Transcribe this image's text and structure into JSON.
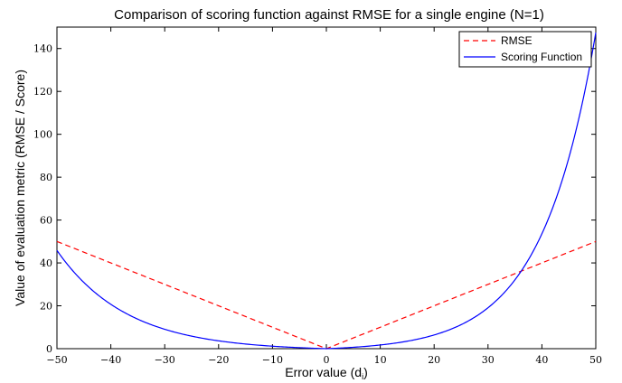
{
  "chart_data": {
    "type": "line",
    "title": "Comparison of scoring function against RMSE for a single engine (N=1)",
    "xlabel": "Error value (d",
    "xlabel_subscript": "i",
    "xlabel_suffix": ")",
    "ylabel": "Value of evaluation metric (RMSE / Score)",
    "xlim": [
      -50,
      50
    ],
    "ylim": [
      0,
      150
    ],
    "xticks": [
      -50,
      -40,
      -30,
      -20,
      -10,
      0,
      10,
      20,
      30,
      40,
      50
    ],
    "xtick_labels": [
      "−50",
      "−40",
      "−30",
      "−20",
      "−10",
      "0",
      "10",
      "20",
      "30",
      "40",
      "50"
    ],
    "yticks": [
      0,
      20,
      40,
      60,
      80,
      100,
      120,
      140
    ],
    "ytick_labels": [
      "0",
      "20",
      "40",
      "60",
      "80",
      "100",
      "120",
      "140"
    ],
    "grid": false,
    "legend_position": "top-right",
    "series": [
      {
        "name": "RMSE",
        "color": "#ff0000",
        "style": "dashed",
        "x": [
          -50,
          -40,
          -30,
          -20,
          -10,
          0,
          10,
          20,
          30,
          40,
          50
        ],
        "y": [
          50,
          40,
          30,
          20,
          10,
          0,
          10,
          20,
          30,
          40,
          50
        ]
      },
      {
        "name": "Scoring Function",
        "color": "#0000ff",
        "style": "solid",
        "x": [
          -50,
          -45,
          -40,
          -35,
          -30,
          -25,
          -20,
          -15,
          -10,
          -5,
          0,
          5,
          10,
          15,
          20,
          25,
          30,
          35,
          40,
          45,
          50
        ],
        "y": [
          46.0,
          30.5,
          20.1,
          13.7,
          9.1,
          5.9,
          3.7,
          2.2,
          1.2,
          0.5,
          0.0,
          0.6,
          2.2,
          4.1,
          6.7,
          10.8,
          19.1,
          32.1,
          54.6,
          91.1,
          147.4
        ]
      }
    ]
  }
}
